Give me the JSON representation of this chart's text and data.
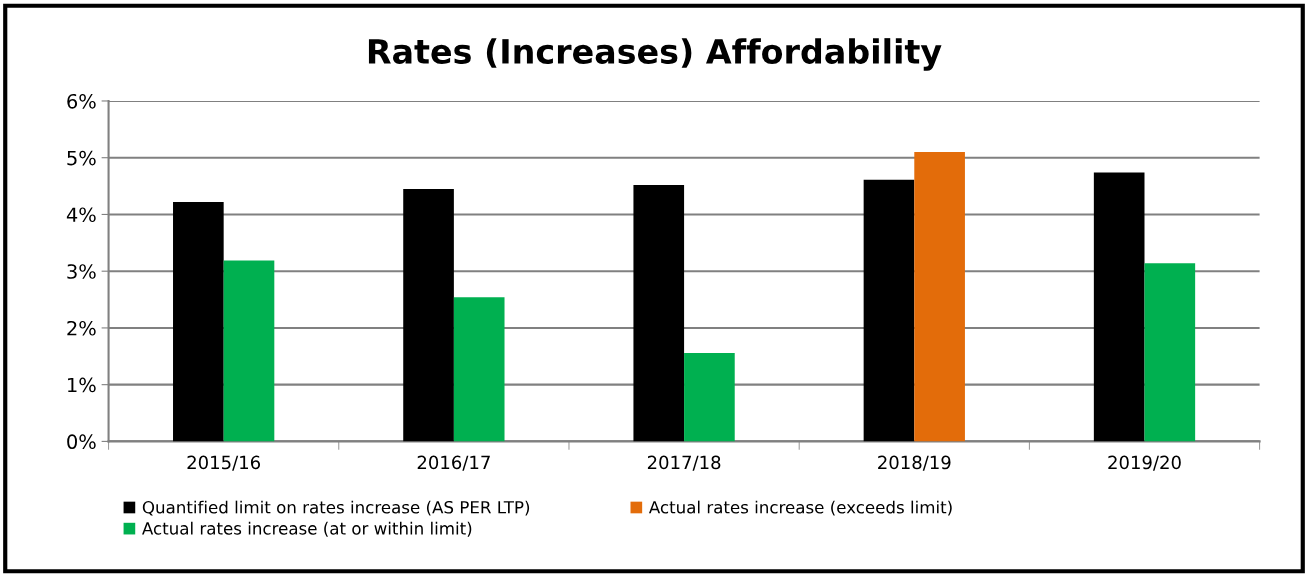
{
  "chart_data": {
    "type": "bar",
    "title": "Rates (Increases) Affordability",
    "categories": [
      "2015/16",
      "2016/17",
      "2017/18",
      "2018/19",
      "2019/20"
    ],
    "series": [
      {
        "name": "Quantified limit on rates increase (AS PER LTP)",
        "color": "#000000",
        "values": [
          4.22,
          4.45,
          4.52,
          4.61,
          4.74
        ]
      },
      {
        "name": "Actual rates increase (at or within limit)",
        "color": "#00b050",
        "values": [
          3.19,
          2.54,
          1.56,
          null,
          3.14
        ]
      },
      {
        "name": "Actual rates increase (exceeds limit)",
        "color": "#e36c0a",
        "values": [
          null,
          null,
          null,
          5.1,
          null
        ]
      }
    ],
    "ylim": [
      0,
      6
    ],
    "yticks": [
      {
        "value": 0,
        "label": "0%"
      },
      {
        "value": 1,
        "label": "1%"
      },
      {
        "value": 2,
        "label": "2%"
      },
      {
        "value": 3,
        "label": "3%"
      },
      {
        "value": 4,
        "label": "4%"
      },
      {
        "value": 5,
        "label": "5%"
      },
      {
        "value": 6,
        "label": "6%"
      }
    ],
    "grid": "y",
    "legend": "bottom"
  }
}
